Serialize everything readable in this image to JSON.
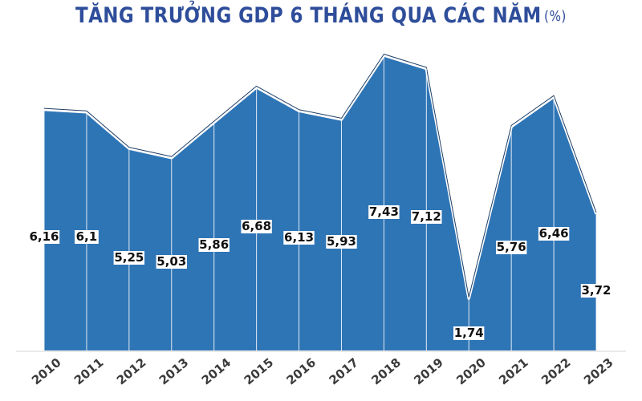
{
  "chart_data": {
    "type": "area",
    "title": "TĂNG TRƯỞNG GDP 6 THÁNG QUA CÁC NĂM",
    "unit": "(%)",
    "categories": [
      "2010",
      "2011",
      "2012",
      "2013",
      "2014",
      "2015",
      "2016",
      "2017",
      "2018",
      "2019",
      "2020",
      "2021",
      "2022",
      "2023"
    ],
    "values": [
      6.16,
      6.1,
      5.25,
      5.03,
      5.86,
      6.68,
      6.13,
      5.93,
      7.43,
      7.12,
      1.74,
      5.76,
      6.46,
      3.72
    ],
    "value_labels": [
      "6,16",
      "6,1",
      "5,25",
      "5,03",
      "5,86",
      "6,68",
      "6,13",
      "5,93",
      "7,43",
      "7,12",
      "1,74",
      "5,76",
      "6,46",
      "3,72"
    ],
    "xlabel": "",
    "ylabel": "",
    "grid": false,
    "fill_color": "#2e75b6",
    "title_color": "#2e4d9a"
  }
}
